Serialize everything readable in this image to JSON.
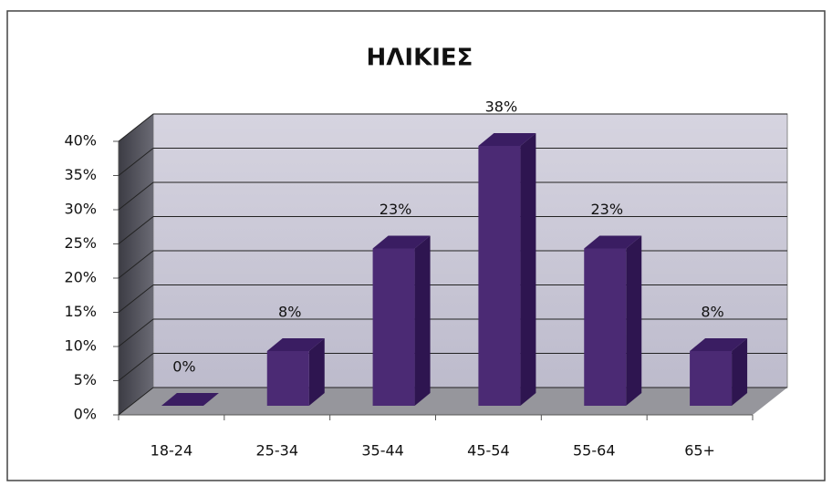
{
  "chart_data": {
    "type": "bar3d",
    "title": "ΗΛΙΚΙΕΣ",
    "categories": [
      "18-24",
      "25-34",
      "35-44",
      "45-54",
      "55-64",
      "65+"
    ],
    "values": [
      0,
      8,
      23,
      38,
      23,
      8
    ],
    "value_labels": [
      "0%",
      "8%",
      "23%",
      "38%",
      "23%",
      "8%"
    ],
    "color": "#4b2a74",
    "ylim": [
      0,
      40
    ],
    "yticks": [
      {
        "value": 0,
        "label": "0%"
      },
      {
        "value": 5,
        "label": "5%"
      },
      {
        "value": 10,
        "label": "10%"
      },
      {
        "value": 15,
        "label": "15%"
      },
      {
        "value": 20,
        "label": "20%"
      },
      {
        "value": 25,
        "label": "25%"
      },
      {
        "value": 30,
        "label": "30%"
      },
      {
        "value": 35,
        "label": "35%"
      },
      {
        "value": 40,
        "label": "40%"
      }
    ],
    "grid": true
  }
}
